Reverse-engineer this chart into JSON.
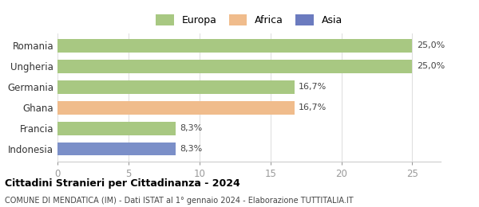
{
  "categories": [
    "Indonesia",
    "Francia",
    "Ghana",
    "Germania",
    "Ungheria",
    "Romania"
  ],
  "values": [
    8.3,
    8.3,
    16.7,
    16.7,
    25.0,
    25.0
  ],
  "bar_colors": [
    "#7b8fc8",
    "#a8c882",
    "#f0bc8c",
    "#a8c882",
    "#a8c882",
    "#a8c882"
  ],
  "labels": [
    "8,3%",
    "8,3%",
    "16,7%",
    "16,7%",
    "25,0%",
    "25,0%"
  ],
  "legend": [
    {
      "label": "Europa",
      "color": "#a8c882"
    },
    {
      "label": "Africa",
      "color": "#f0bc8c"
    },
    {
      "label": "Asia",
      "color": "#6b7bbf"
    }
  ],
  "xlim": [
    0,
    27
  ],
  "xticks": [
    0,
    5,
    10,
    15,
    20,
    25
  ],
  "xtick_labels": [
    "0",
    "5",
    "10",
    "15",
    "20",
    "25"
  ],
  "title_bold": "Cittadini Stranieri per Cittadinanza - 2024",
  "subtitle": "COMUNE DI MENDATICA (IM) - Dati ISTAT al 1° gennaio 2024 - Elaborazione TUTTITALIA.IT",
  "background_color": "#ffffff",
  "grid_color": "#e0e0e0"
}
